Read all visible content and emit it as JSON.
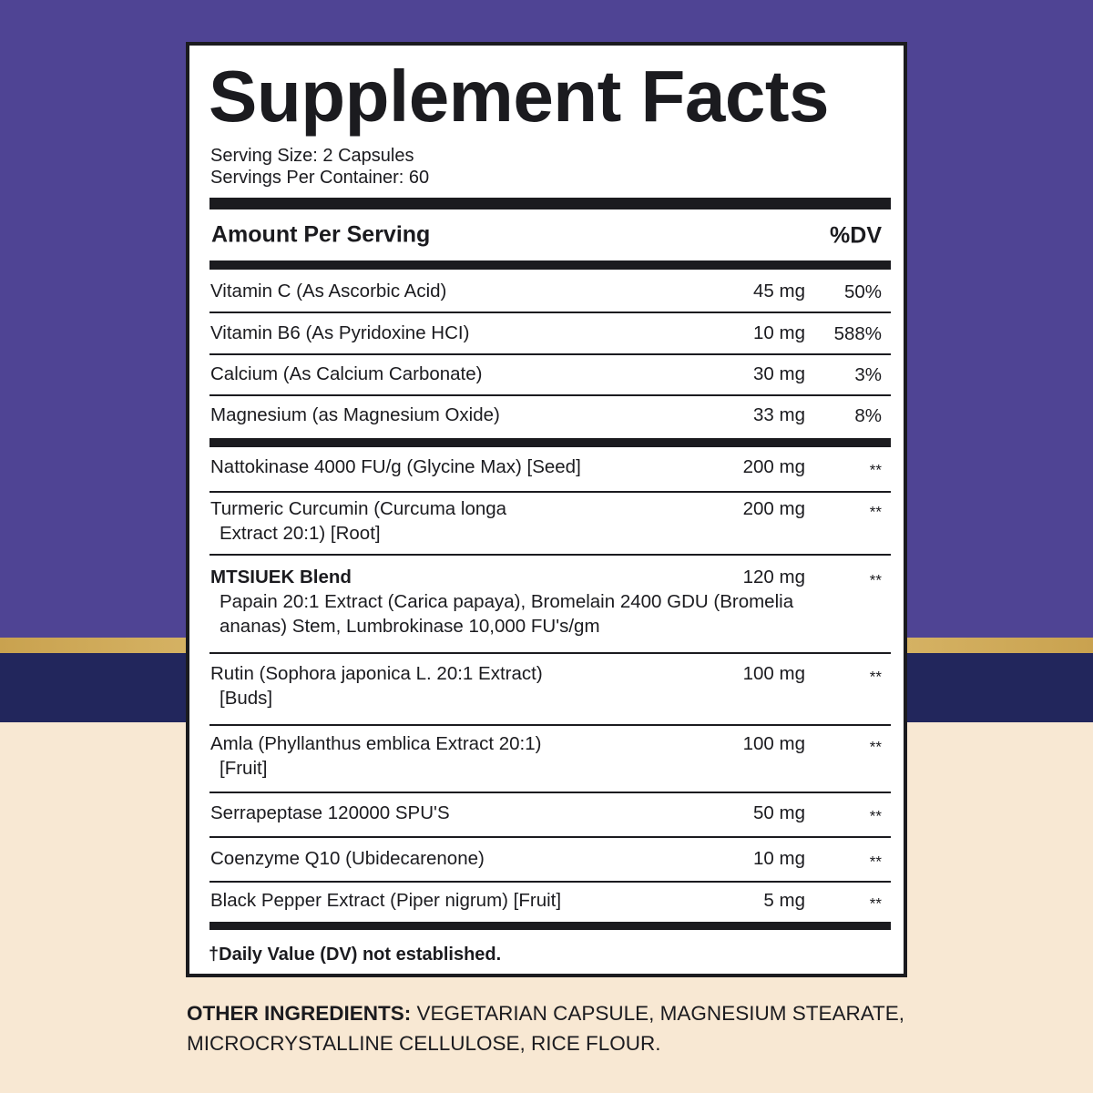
{
  "label": {
    "title": "Supplement Facts",
    "serving_size": "Serving Size: 2 Capsules",
    "servings_per_container": "Servings Per Container: 60",
    "amount_header": "Amount Per Serving",
    "dv_header": "%DV",
    "vitamins": [
      {
        "name": "Vitamin C (As Ascorbic Acid)",
        "amount": "45 mg",
        "dv": "50%"
      },
      {
        "name": "Vitamin B6 (As Pyridoxine HCI)",
        "amount": "10 mg",
        "dv": "588%"
      },
      {
        "name": "Calcium (As Calcium Carbonate)",
        "amount": "30 mg",
        "dv": "3%"
      },
      {
        "name": "Magnesium (as Magnesium Oxide)",
        "amount": "33 mg",
        "dv": "8%"
      }
    ],
    "ingredients": [
      {
        "name": "Nattokinase 4000 FU/g (Glycine Max) [Seed]",
        "details": [],
        "amount": "200 mg",
        "dv": "**"
      },
      {
        "name": "Turmeric Curcumin (Curcuma longa",
        "details": [
          "Extract 20:1) [Root]"
        ],
        "amount": "200 mg",
        "dv": "**"
      },
      {
        "name": "MTSIUEK Blend",
        "bold": true,
        "details": [
          "Papain 20:1 Extract (Carica papaya), Bromelain 2400 GDU (Bromelia",
          "ananas) Stem, Lumbrokinase 10,000 FU's/gm"
        ],
        "amount": "120 mg",
        "dv": "**"
      },
      {
        "name": "Rutin (Sophora japonica L. 20:1 Extract)",
        "details": [
          "[Buds]"
        ],
        "amount": "100 mg",
        "dv": "**"
      },
      {
        "name": "Amla (Phyllanthus emblica Extract 20:1)",
        "details": [
          "[Fruit]"
        ],
        "amount": "100 mg",
        "dv": "**"
      },
      {
        "name": "Serrapeptase 120000 SPU'S",
        "details": [],
        "amount": "50 mg",
        "dv": "**"
      },
      {
        "name": "Coenzyme Q10 (Ubidecarenone)",
        "details": [],
        "amount": "10 mg",
        "dv": "**"
      },
      {
        "name": "Black Pepper Extract (Piper nigrum) [Fruit]",
        "details": [],
        "amount": "5 mg",
        "dv": "**"
      }
    ],
    "footnote": "†Daily Value (DV) not established."
  },
  "other_ingredients": {
    "heading": "OTHER INGREDIENTS:",
    "text": "VEGETARIAN CAPSULE, MAGNESIUM STEARATE, MICROCRYSTALLINE CELLULOSE, RICE FLOUR."
  }
}
